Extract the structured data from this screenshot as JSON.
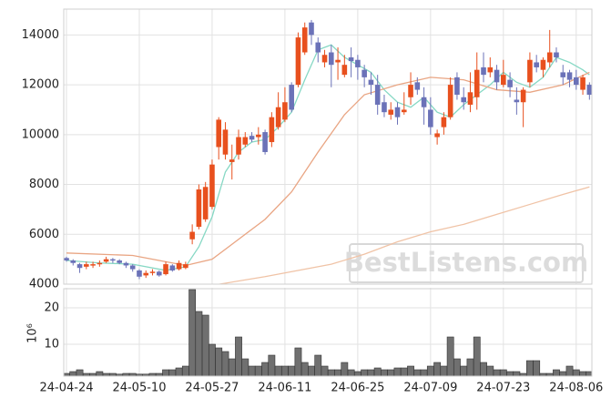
{
  "chart_data": [
    {
      "type": "candlestick",
      "watermark": "BestListens.com",
      "open": [
        5050,
        4950,
        4800,
        4700,
        4750,
        4800,
        4900,
        5000,
        4950,
        4850,
        4750,
        4550,
        4350,
        4450,
        4500,
        4400,
        4750,
        4600,
        4650,
        5800,
        6300,
        6600,
        7100,
        9500,
        9200,
        8900,
        9200,
        9600,
        9950,
        9900,
        10100,
        9700,
        10300,
        10600,
        12000,
        12000,
        13300,
        14500,
        13700,
        12900,
        13300,
        12900,
        12400,
        13100,
        13000,
        12600,
        12200,
        12000,
        11300,
        10800,
        11100,
        10900,
        11500,
        12100,
        11500,
        11000,
        9900,
        10300,
        10700,
        12300,
        11500,
        11200,
        11500,
        12700,
        12500,
        12600,
        12000,
        12200,
        11400,
        11300,
        12100,
        12900,
        12600,
        12900,
        13300,
        12500,
        12500,
        12300,
        11800,
        12000
      ],
      "high": [
        5100,
        5000,
        4850,
        4900,
        4900,
        4950,
        5100,
        5050,
        5000,
        4900,
        4800,
        4600,
        4550,
        4600,
        4550,
        4900,
        4800,
        4950,
        4900,
        6400,
        8000,
        8100,
        9000,
        10700,
        10500,
        9600,
        10200,
        10100,
        10100,
        10300,
        10200,
        10900,
        11700,
        11900,
        12100,
        14100,
        14500,
        14600,
        13900,
        13400,
        13600,
        13500,
        13200,
        13500,
        13200,
        12800,
        12500,
        12400,
        11600,
        11300,
        11300,
        11700,
        12500,
        12300,
        11900,
        11500,
        10200,
        10900,
        12300,
        12500,
        11900,
        12500,
        13300,
        13300,
        13100,
        12800,
        13000,
        12500,
        11900,
        11900,
        13300,
        13200,
        13100,
        14200,
        13500,
        12800,
        12600,
        12600,
        12400,
        12100
      ],
      "low": [
        4900,
        4750,
        4450,
        4600,
        4650,
        4700,
        4850,
        4850,
        4800,
        4650,
        4500,
        4200,
        4250,
        4350,
        4300,
        4350,
        4500,
        4550,
        4600,
        5600,
        6200,
        6500,
        7000,
        9000,
        9000,
        8200,
        9000,
        9500,
        9700,
        9600,
        9200,
        9500,
        10200,
        10500,
        10900,
        11900,
        13200,
        13600,
        12900,
        12700,
        11900,
        12200,
        12300,
        12300,
        12200,
        11900,
        11600,
        10800,
        10700,
        10600,
        10400,
        10800,
        11200,
        11600,
        10400,
        10000,
        9600,
        10000,
        10600,
        11400,
        11000,
        10900,
        11000,
        12100,
        12300,
        11800,
        11900,
        11500,
        10800,
        10300,
        11900,
        12500,
        12300,
        12700,
        12900,
        12000,
        11900,
        11800,
        11600,
        11400
      ],
      "close": [
        4950,
        4850,
        4650,
        4800,
        4800,
        4850,
        5000,
        4950,
        4850,
        4750,
        4600,
        4300,
        4450,
        4500,
        4350,
        4800,
        4550,
        4850,
        4800,
        6100,
        7800,
        7900,
        8800,
        10600,
        10200,
        9000,
        9900,
        9900,
        9800,
        10000,
        9300,
        10700,
        11100,
        11300,
        11000,
        13900,
        14300,
        14000,
        13300,
        13200,
        12800,
        13000,
        12800,
        12950,
        12700,
        12300,
        12000,
        11200,
        10900,
        11000,
        10700,
        11000,
        12000,
        11800,
        11100,
        10300,
        10050,
        10700,
        12000,
        11600,
        11300,
        11700,
        12600,
        12400,
        12700,
        12100,
        12400,
        11900,
        11300,
        11800,
        13000,
        12700,
        13000,
        13300,
        13100,
        12300,
        12200,
        12000,
        12300,
        11600
      ],
      "up_color": "#e8501e",
      "down_color": "#6b72b8",
      "series": [
        {
          "color": "#86d8c4",
          "x": [
            0,
            5,
            10,
            15,
            18,
            20,
            22,
            24,
            26,
            28,
            30,
            32,
            34,
            36,
            38,
            40,
            42,
            44,
            46,
            48,
            50,
            52,
            54,
            56,
            58,
            60,
            62,
            64,
            66,
            68,
            70,
            72,
            74,
            76,
            78,
            79
          ],
          "values": [
            4950,
            4850,
            4800,
            4550,
            4700,
            5500,
            6700,
            8500,
            9300,
            9700,
            9800,
            10300,
            10900,
            12200,
            13400,
            13600,
            13100,
            12800,
            12500,
            11800,
            11300,
            11100,
            11500,
            10900,
            10700,
            11200,
            11600,
            12000,
            12500,
            12100,
            11900,
            12300,
            13100,
            12900,
            12600,
            12400
          ]
        },
        {
          "color": "#e9a583",
          "x": [
            0,
            10,
            15,
            18,
            22,
            25,
            30,
            34,
            38,
            42,
            45,
            50,
            55,
            60,
            65,
            70,
            75,
            79
          ],
          "values": [
            5250,
            5150,
            4900,
            4750,
            5000,
            5600,
            6600,
            7700,
            9300,
            10800,
            11600,
            12000,
            12300,
            12200,
            11800,
            11700,
            12000,
            12500
          ]
        },
        {
          "color": "#f0c3a6",
          "x": [
            22,
            30,
            40,
            45,
            50,
            55,
            60,
            65,
            70,
            75,
            79
          ],
          "values": [
            3950,
            4300,
            4800,
            5200,
            5700,
            6100,
            6400,
            6800,
            7200,
            7600,
            7900
          ]
        }
      ],
      "ylim": [
        4000,
        15000
      ],
      "yticks": [
        4000,
        6000,
        8000,
        10000,
        12000,
        14000
      ],
      "grid": true
    },
    {
      "type": "bar",
      "color": "#707070",
      "ylabel": "10⁶",
      "categories": [
        "24-04-24",
        null,
        null,
        null,
        null,
        null,
        null,
        null,
        null,
        null,
        null,
        "24-05-10",
        null,
        null,
        null,
        null,
        null,
        null,
        null,
        null,
        null,
        null,
        "24-05-27",
        null,
        null,
        null,
        null,
        null,
        null,
        null,
        null,
        null,
        null,
        "24-06-11",
        null,
        null,
        null,
        null,
        null,
        null,
        null,
        null,
        null,
        null,
        "24-06-25",
        null,
        null,
        null,
        null,
        null,
        null,
        null,
        null,
        null,
        null,
        "24-07-09",
        null,
        null,
        null,
        null,
        null,
        null,
        null,
        null,
        null,
        null,
        "24-07-23",
        null,
        null,
        null,
        null,
        null,
        null,
        null,
        null,
        null,
        null,
        "24-08-06",
        null,
        null
      ],
      "values": [
        2,
        2.5,
        3,
        2,
        2,
        2.5,
        2,
        2,
        1.8,
        2,
        2,
        1.8,
        1.8,
        2,
        2,
        3,
        3,
        3.5,
        4,
        25,
        19,
        18,
        10,
        9,
        8,
        6,
        12,
        6,
        4,
        4,
        5,
        7,
        4,
        4,
        4,
        9,
        5,
        4,
        7,
        4,
        3,
        3,
        5,
        3,
        2.5,
        3,
        3,
        3.5,
        3,
        3,
        3.5,
        3.5,
        4,
        3,
        3,
        4,
        5,
        4,
        12,
        6,
        4,
        6,
        12,
        5,
        4,
        3,
        3,
        2.5,
        2.5,
        2,
        5.5,
        5.5,
        2,
        2,
        3,
        2.5,
        4,
        3,
        2.5,
        2.5
      ],
      "ylim": [
        1.25,
        25.25
      ],
      "yticks": [
        10,
        20
      ],
      "grid": true
    }
  ]
}
